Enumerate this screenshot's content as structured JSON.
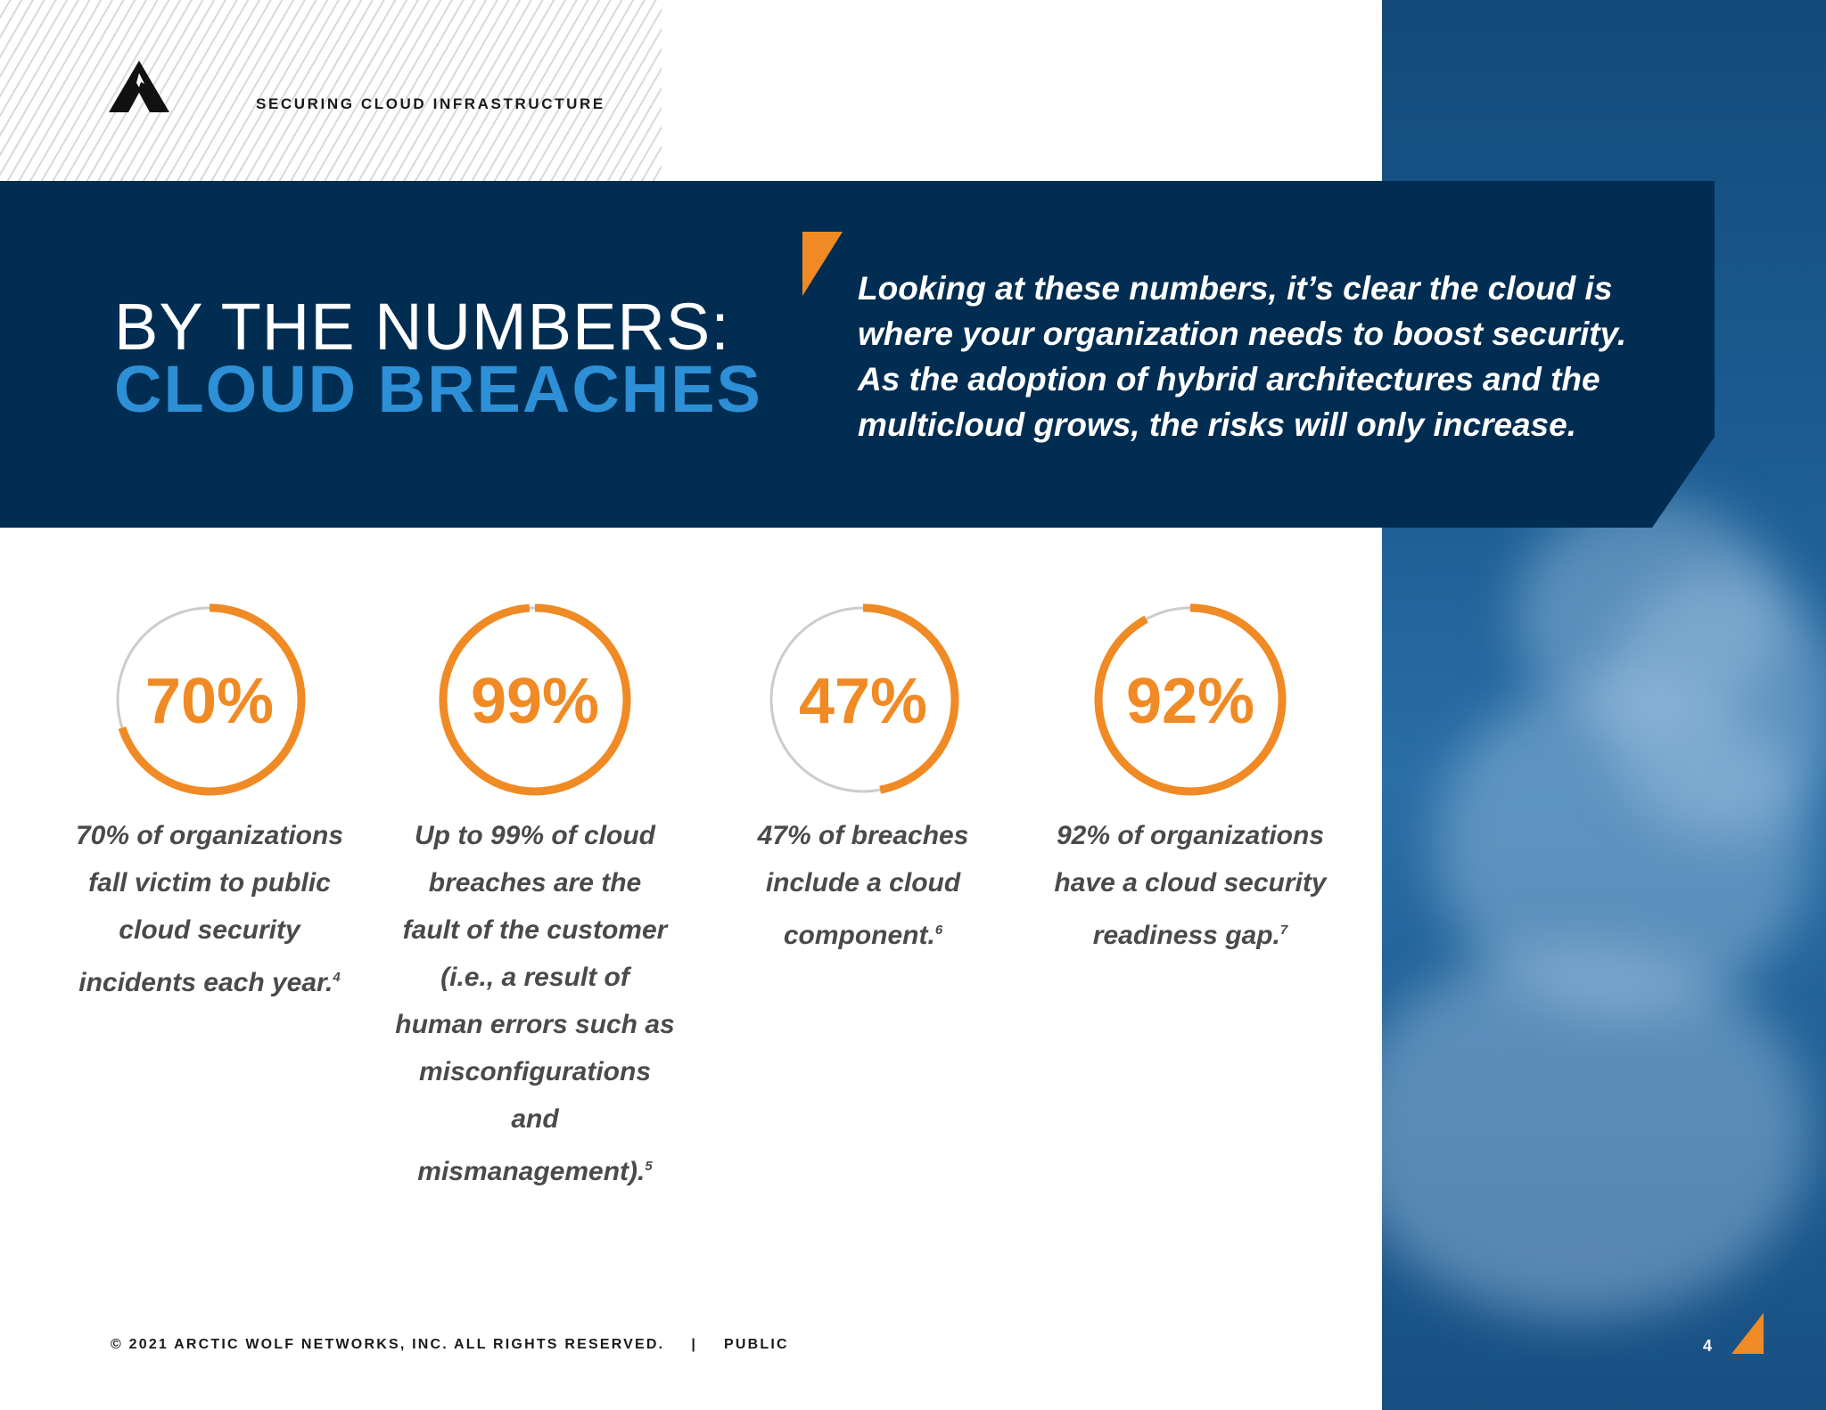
{
  "header": {
    "doc_title": "SECURING CLOUD INFRASTRUCTURE",
    "logo_icon": "arctic-wolf-logo-icon"
  },
  "banner": {
    "title_line1": "BY THE NUMBERS:",
    "title_line2": "CLOUD BREACHES",
    "quote_lines": [
      "Looking at these numbers, it’s clear the cloud is",
      "where your organization needs to boost security.",
      "As the adoption of hybrid architectures and the",
      "multicloud grows, the risks will only increase."
    ]
  },
  "stats": [
    {
      "percent": 70,
      "label": "70%",
      "lines": [
        "70% of organizations",
        "fall victim to public",
        "cloud security",
        "incidents each year."
      ],
      "footnote": "4"
    },
    {
      "percent": 99,
      "label": "99%",
      "lines": [
        "Up to 99% of cloud",
        "breaches are the",
        "fault of the customer",
        "(i.e., a result of",
        "human errors such as",
        "misconfigurations and",
        "mismanagement)."
      ],
      "footnote": "5"
    },
    {
      "percent": 47,
      "label": "47%",
      "lines": [
        "47% of breaches",
        "include a cloud",
        "component."
      ],
      "footnote": "6"
    },
    {
      "percent": 92,
      "label": "92%",
      "lines": [
        "92% of organizations",
        "have a cloud security",
        "readiness gap."
      ],
      "footnote": "7"
    }
  ],
  "footer": {
    "copyright": "© 2021 ARCTIC WOLF NETWORKS, INC. ALL RIGHTS RESERVED.",
    "separator": "|",
    "classification": "PUBLIC",
    "page_number": "4"
  },
  "colors": {
    "navy": "#002d51",
    "accent_blue": "#2d8fd6",
    "orange": "#f08a24",
    "ring_track": "#cccccc"
  }
}
